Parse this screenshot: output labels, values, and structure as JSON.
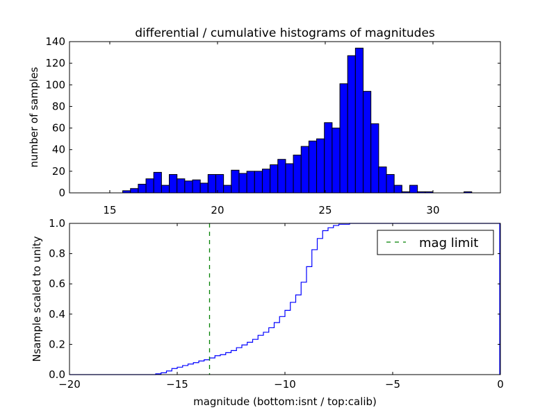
{
  "chart_data": [
    {
      "type": "bar",
      "title": "differential / cumulative histograms of magnitudes",
      "xlabel": "",
      "ylabel": "number of samples",
      "xlim": [
        13.13,
        33.13
      ],
      "ylim": [
        0,
        140
      ],
      "xticks": [
        "15",
        "20",
        "25",
        "30"
      ],
      "xtick_values": [
        15,
        20,
        25,
        30
      ],
      "yticks": [
        "0",
        "20",
        "40",
        "60",
        "80",
        "100",
        "120",
        "140"
      ],
      "ytick_values": [
        0,
        20,
        40,
        60,
        80,
        100,
        120,
        140
      ],
      "bin_start": 15.6,
      "bin_width": 0.36,
      "values": [
        2,
        4,
        8,
        13,
        19,
        7,
        17,
        13,
        11,
        12,
        9,
        17,
        17,
        7,
        21,
        18,
        20,
        20,
        22,
        26,
        31,
        27,
        35,
        43,
        48,
        50,
        65,
        60,
        101,
        127,
        134,
        94,
        64,
        24,
        17,
        7,
        1,
        7,
        1,
        1,
        0,
        0,
        0,
        0,
        1
      ],
      "color": "#0000ff"
    },
    {
      "type": "line",
      "xlabel": "magnitude (bottom:isnt / top:calib)",
      "ylabel": "Nsample scaled to unity",
      "xlim": [
        -20,
        0
      ],
      "ylim": [
        0,
        1
      ],
      "xticks": [
        "−20",
        "−15",
        "−10",
        "−5",
        "0"
      ],
      "xtick_values": [
        -20,
        -15,
        -10,
        -5,
        0
      ],
      "yticks": [
        "0.0",
        "0.2",
        "0.4",
        "0.6",
        "0.8",
        "1.0"
      ],
      "ytick_values": [
        0,
        0.2,
        0.4,
        0.6,
        0.8,
        1.0
      ],
      "step_start": -16.0,
      "step_width": 0.25,
      "cumulative": [
        0.005,
        0.012,
        0.024,
        0.04,
        0.049,
        0.06,
        0.07,
        0.079,
        0.09,
        0.098,
        0.11,
        0.125,
        0.132,
        0.145,
        0.159,
        0.178,
        0.196,
        0.214,
        0.233,
        0.26,
        0.28,
        0.31,
        0.344,
        0.384,
        0.425,
        0.478,
        0.527,
        0.611,
        0.714,
        0.826,
        0.9,
        0.952,
        0.971,
        0.986,
        0.994,
        0.994,
        1.0
      ],
      "series_color": "#0000ff",
      "mag_limit": -13.5,
      "mag_limit_color": "#008000",
      "legend": {
        "label": "mag limit",
        "placement": "top-right"
      }
    }
  ]
}
